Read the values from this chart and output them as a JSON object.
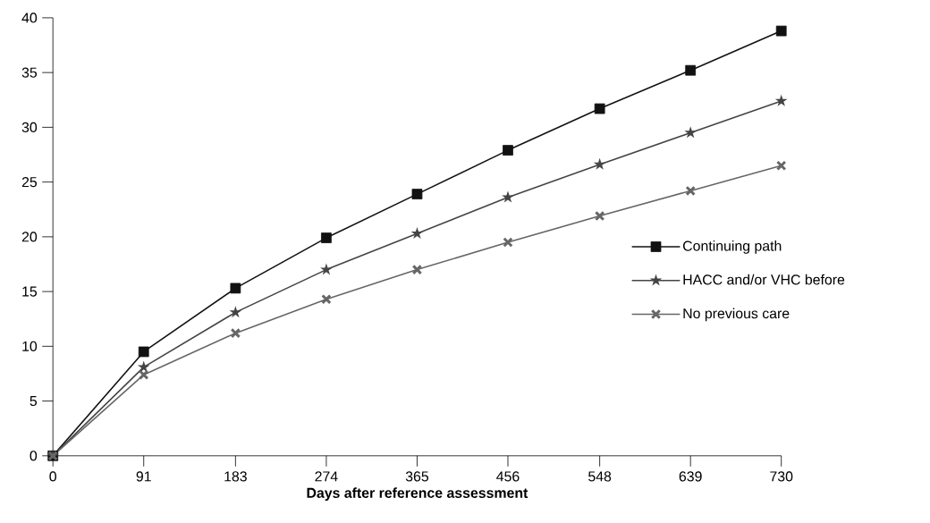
{
  "chart_data": {
    "type": "line",
    "xlabel": "Days after reference assessment",
    "x": [
      0,
      91,
      183,
      274,
      365,
      456,
      548,
      639,
      730
    ],
    "xlim": [
      0,
      730
    ],
    "xticks": [
      0,
      91,
      183,
      274,
      365,
      456,
      548,
      639,
      730
    ],
    "ylim": [
      0,
      40
    ],
    "yticks": [
      0,
      5,
      10,
      15,
      20,
      25,
      30,
      35,
      40
    ],
    "grid": false,
    "legend": "right",
    "line_style": "solid",
    "series": [
      {
        "name": "Continuing path",
        "color": "#111111",
        "marker": "square",
        "values": [
          0,
          9.5,
          15.3,
          19.9,
          23.9,
          27.9,
          31.7,
          35.2,
          38.8
        ]
      },
      {
        "name": "HACC and/or VHC before",
        "color": "#444444",
        "marker": "star",
        "values": [
          0,
          8.1,
          13.1,
          17.0,
          20.3,
          23.6,
          26.6,
          29.5,
          32.4
        ]
      },
      {
        "name": "No previous care",
        "color": "#666666",
        "marker": "cross",
        "values": [
          0,
          7.4,
          11.2,
          14.3,
          17.0,
          19.5,
          21.9,
          24.2,
          26.5
        ]
      }
    ]
  }
}
